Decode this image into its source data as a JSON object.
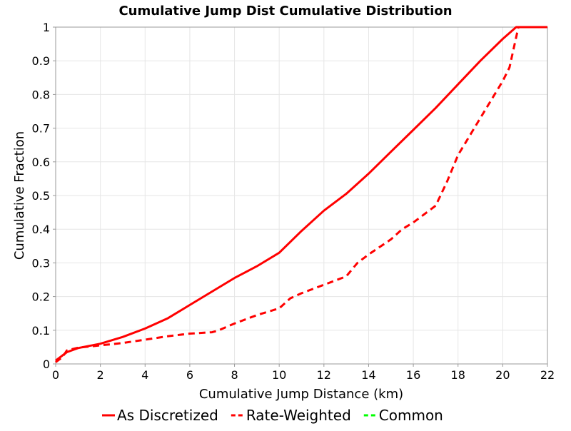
{
  "chart_data": {
    "type": "line",
    "title": "Cumulative Jump Dist Cumulative Distribution",
    "xlabel": "Cumulative Jump Distance (km)",
    "ylabel": "Cumulative Fraction",
    "xlim": [
      0,
      22
    ],
    "ylim": [
      0,
      1
    ],
    "x_ticks": [
      "0",
      "2",
      "4",
      "6",
      "8",
      "10",
      "12",
      "14",
      "16",
      "18",
      "20",
      "22"
    ],
    "y_ticks": [
      "0",
      "0.1",
      "0.2",
      "0.3",
      "0.4",
      "0.5",
      "0.6",
      "0.7",
      "0.8",
      "0.9",
      "1"
    ],
    "grid": true,
    "legend_position": "bottom",
    "series": [
      {
        "name": "As Discretized",
        "color": "#ff0000",
        "dash": "solid",
        "x": [
          0,
          0.5,
          1,
          2,
          3,
          4,
          5,
          6,
          7,
          8,
          9,
          10,
          11,
          12,
          13,
          14,
          15,
          16,
          17,
          18,
          19,
          20,
          20.6,
          22
        ],
        "y": [
          0.01,
          0.035,
          0.047,
          0.06,
          0.08,
          0.105,
          0.135,
          0.175,
          0.215,
          0.255,
          0.29,
          0.33,
          0.395,
          0.455,
          0.505,
          0.565,
          0.63,
          0.695,
          0.76,
          0.83,
          0.9,
          0.965,
          1.0,
          1.0
        ]
      },
      {
        "name": "Rate-Weighted",
        "color": "#ff0000",
        "dash": "dashed",
        "x": [
          0,
          0.3,
          0.5,
          1,
          2,
          3,
          4,
          5,
          6,
          7,
          7.3,
          8,
          9,
          10,
          10.5,
          11,
          12,
          13,
          13.5,
          14,
          15,
          15.5,
          16,
          17,
          17.5,
          18,
          19,
          20,
          20.3,
          20.7,
          22
        ],
        "y": [
          0.005,
          0.02,
          0.04,
          0.048,
          0.055,
          0.062,
          0.072,
          0.082,
          0.09,
          0.094,
          0.1,
          0.12,
          0.145,
          0.165,
          0.195,
          0.21,
          0.235,
          0.26,
          0.3,
          0.325,
          0.37,
          0.4,
          0.42,
          0.47,
          0.54,
          0.62,
          0.73,
          0.84,
          0.88,
          1.0,
          1.0
        ]
      },
      {
        "name": "Common",
        "color": "#00ff00",
        "dash": "dashed",
        "x": [],
        "y": []
      }
    ]
  }
}
